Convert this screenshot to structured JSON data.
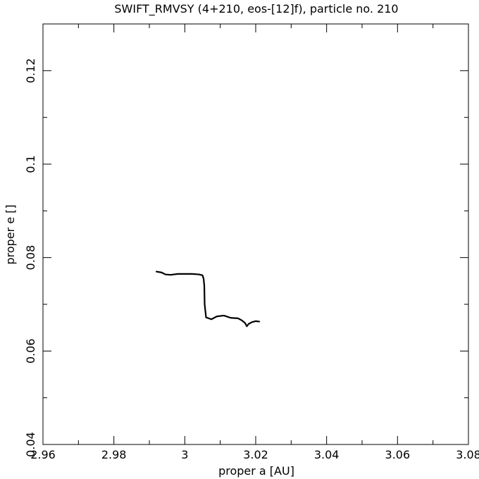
{
  "chart_data": {
    "type": "line",
    "title": "SWIFT_RMVSY (4+210, eos-[12]f), particle no. 210",
    "xlabel": "proper a [AU]",
    "ylabel": "proper e []",
    "xlim": [
      2.96,
      3.08
    ],
    "ylim": [
      0.04,
      0.13
    ],
    "x_ticks": [
      2.96,
      2.98,
      3.0,
      3.02,
      3.04,
      3.06,
      3.08
    ],
    "x_tick_labels": [
      "2.96",
      "2.98",
      "3",
      "3.02",
      "3.04",
      "3.06",
      "3.08"
    ],
    "y_ticks": [
      0.04,
      0.06,
      0.08,
      0.1,
      0.12
    ],
    "y_tick_labels": [
      "0.04",
      "0.06",
      "0.08",
      "0.1",
      "0.12"
    ],
    "grid": false,
    "line_color": "#000000",
    "series": [
      {
        "name": "",
        "x": [
          2.992,
          2.9935,
          2.9945,
          2.996,
          2.998,
          3.0,
          3.002,
          3.004,
          3.005,
          3.0053,
          3.0055,
          3.0056,
          3.006,
          3.0075,
          3.009,
          3.011,
          3.013,
          3.015,
          3.016,
          3.017,
          3.0175,
          3.018,
          3.019,
          3.02,
          3.021
        ],
        "y": [
          0.077,
          0.0768,
          0.0764,
          0.0763,
          0.0765,
          0.0765,
          0.0765,
          0.0764,
          0.0762,
          0.0755,
          0.074,
          0.07,
          0.0672,
          0.0668,
          0.0674,
          0.0676,
          0.0671,
          0.067,
          0.0666,
          0.066,
          0.0653,
          0.0658,
          0.0662,
          0.0664,
          0.0663
        ]
      }
    ]
  }
}
